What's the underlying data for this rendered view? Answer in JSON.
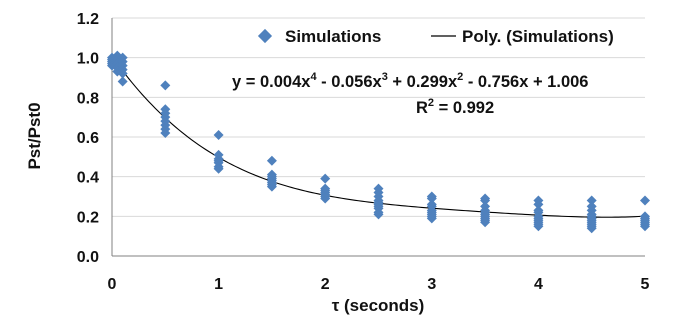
{
  "chart_data": {
    "type": "scatter",
    "title": "",
    "xlabel": "τ (seconds)",
    "ylabel": "Pst/Pst0",
    "xlim": [
      0,
      5
    ],
    "ylim": [
      0.0,
      1.2
    ],
    "x_ticks": [
      "0",
      "1",
      "2",
      "3",
      "4",
      "5"
    ],
    "y_ticks": [
      "0.0",
      "0.2",
      "0.4",
      "0.6",
      "0.8",
      "1.0",
      "1.2"
    ],
    "grid": "horizontal",
    "legend_position": "top",
    "legend": {
      "series_label": "Simulations",
      "trend_label": "Poly. (Simulations)"
    },
    "trendline": {
      "type": "polynomial",
      "order": 4,
      "coefficients": [
        1.006,
        -0.756,
        0.299,
        -0.056,
        0.004
      ],
      "equation_parts": {
        "t1": "y = 0.004x",
        "e1": "4",
        "t2": " - 0.056x",
        "e2": "3",
        "t3": " + 0.299x",
        "e3": "2",
        "t4": " - 0.756x + 1.006"
      },
      "r2_parts": {
        "t1": "R",
        "e1": "2",
        "t2": " = 0.992"
      }
    },
    "colors": {
      "marker": "#4f81bd",
      "trendline": "#000000",
      "grid": "#d9d9d9",
      "axis": "#808080"
    },
    "series": [
      {
        "name": "Simulations",
        "points": [
          [
            0,
            1.0
          ],
          [
            0,
            0.99
          ],
          [
            0,
            0.98
          ],
          [
            0,
            0.97
          ],
          [
            0,
            0.96
          ],
          [
            0.05,
            1.01
          ],
          [
            0.05,
            0.99
          ],
          [
            0.05,
            0.97
          ],
          [
            0.05,
            0.95
          ],
          [
            0.05,
            0.93
          ],
          [
            0.1,
            1.0
          ],
          [
            0.1,
            0.98
          ],
          [
            0.1,
            0.96
          ],
          [
            0.1,
            0.94
          ],
          [
            0.1,
            0.92
          ],
          [
            0.1,
            0.88
          ],
          [
            0.5,
            0.86
          ],
          [
            0.5,
            0.74
          ],
          [
            0.5,
            0.72
          ],
          [
            0.5,
            0.7
          ],
          [
            0.5,
            0.68
          ],
          [
            0.5,
            0.66
          ],
          [
            0.5,
            0.64
          ],
          [
            0.5,
            0.62
          ],
          [
            1,
            0.61
          ],
          [
            1,
            0.51
          ],
          [
            1,
            0.49
          ],
          [
            1,
            0.48
          ],
          [
            1,
            0.47
          ],
          [
            1,
            0.45
          ],
          [
            1,
            0.44
          ],
          [
            1.5,
            0.48
          ],
          [
            1.5,
            0.41
          ],
          [
            1.5,
            0.4
          ],
          [
            1.5,
            0.39
          ],
          [
            1.5,
            0.38
          ],
          [
            1.5,
            0.37
          ],
          [
            1.5,
            0.36
          ],
          [
            1.5,
            0.35
          ],
          [
            2,
            0.39
          ],
          [
            2,
            0.34
          ],
          [
            2,
            0.33
          ],
          [
            2,
            0.32
          ],
          [
            2,
            0.31
          ],
          [
            2,
            0.3
          ],
          [
            2,
            0.29
          ],
          [
            2.5,
            0.34
          ],
          [
            2.5,
            0.32
          ],
          [
            2.5,
            0.3
          ],
          [
            2.5,
            0.28
          ],
          [
            2.5,
            0.27
          ],
          [
            2.5,
            0.26
          ],
          [
            2.5,
            0.25
          ],
          [
            2.5,
            0.24
          ],
          [
            2.5,
            0.22
          ],
          [
            2.5,
            0.21
          ],
          [
            3,
            0.3
          ],
          [
            3,
            0.29
          ],
          [
            3,
            0.26
          ],
          [
            3,
            0.25
          ],
          [
            3,
            0.23
          ],
          [
            3,
            0.22
          ],
          [
            3,
            0.21
          ],
          [
            3,
            0.2
          ],
          [
            3,
            0.19
          ],
          [
            3.5,
            0.29
          ],
          [
            3.5,
            0.28
          ],
          [
            3.5,
            0.25
          ],
          [
            3.5,
            0.23
          ],
          [
            3.5,
            0.22
          ],
          [
            3.5,
            0.21
          ],
          [
            3.5,
            0.2
          ],
          [
            3.5,
            0.19
          ],
          [
            3.5,
            0.18
          ],
          [
            3.5,
            0.17
          ],
          [
            4,
            0.28
          ],
          [
            4,
            0.26
          ],
          [
            4,
            0.23
          ],
          [
            4,
            0.22
          ],
          [
            4,
            0.2
          ],
          [
            4,
            0.19
          ],
          [
            4,
            0.18
          ],
          [
            4,
            0.17
          ],
          [
            4,
            0.16
          ],
          [
            4,
            0.15
          ],
          [
            4.5,
            0.28
          ],
          [
            4.5,
            0.25
          ],
          [
            4.5,
            0.23
          ],
          [
            4.5,
            0.21
          ],
          [
            4.5,
            0.2
          ],
          [
            4.5,
            0.19
          ],
          [
            4.5,
            0.18
          ],
          [
            4.5,
            0.17
          ],
          [
            4.5,
            0.16
          ],
          [
            4.5,
            0.15
          ],
          [
            4.5,
            0.14
          ],
          [
            5,
            0.28
          ],
          [
            5,
            0.2
          ],
          [
            5,
            0.19
          ],
          [
            5,
            0.18
          ],
          [
            5,
            0.17
          ],
          [
            5,
            0.16
          ],
          [
            5,
            0.15
          ]
        ]
      }
    ]
  }
}
